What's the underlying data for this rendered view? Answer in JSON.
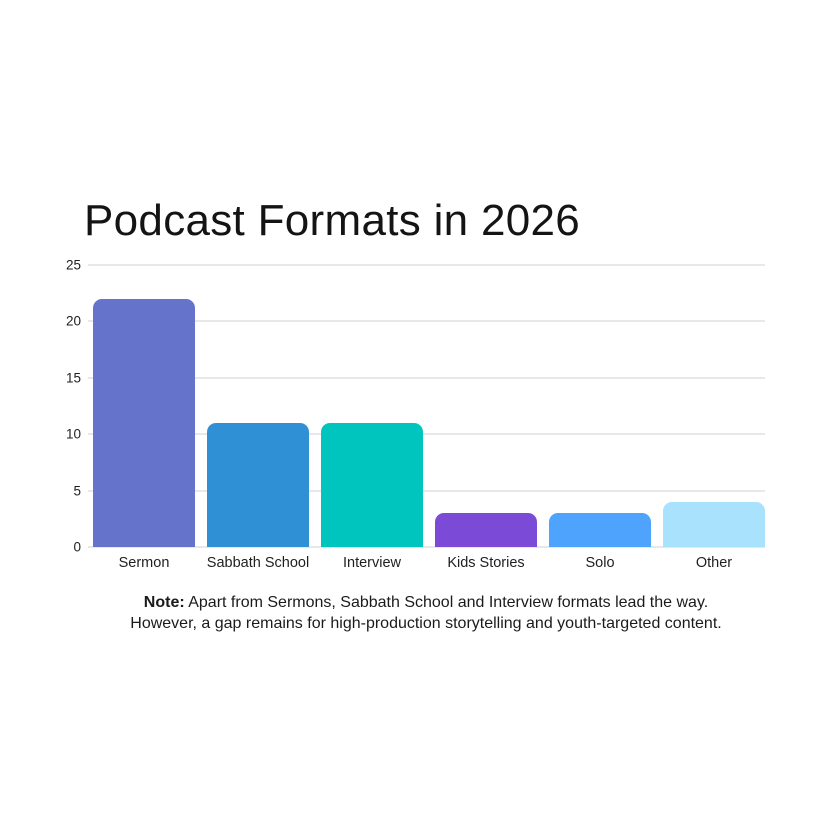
{
  "chart_data": {
    "type": "bar",
    "title": "Podcast Formats in 2026",
    "categories": [
      "Sermon",
      "Sabbath School",
      "Interview",
      "Kids Stories",
      "Solo",
      "Other"
    ],
    "values": [
      22,
      11,
      11,
      3,
      3,
      4
    ],
    "bar_colors": [
      "#6673CB",
      "#3090D5",
      "#00C5BF",
      "#7B4AD7",
      "#4EA3FC",
      "#A9E2FC"
    ],
    "xlabel": "",
    "ylabel": "",
    "ylim": [
      0,
      25
    ],
    "yticks": [
      25,
      20,
      15,
      10,
      5,
      0
    ],
    "grid": "horizontal-only",
    "legend": "none"
  },
  "note": {
    "bold_label": "Note:",
    "line1": "Apart from Sermons, Sabbath School and Interview formats lead the way.",
    "line2": "However, a gap remains for high-production storytelling and youth-targeted content."
  },
  "colors": {
    "background": "#ffffff",
    "gridline": "#e8e8e8",
    "title_text": "#141414",
    "axis_text": "#1f1f1f",
    "note_text": "#1b1b1b"
  }
}
